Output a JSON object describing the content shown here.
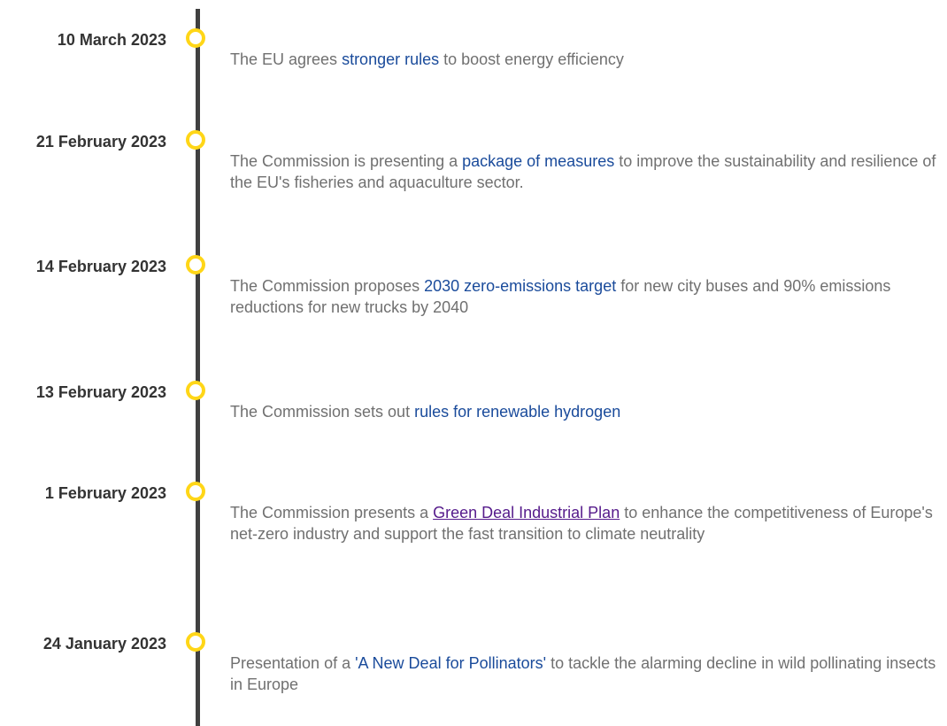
{
  "timeline": [
    {
      "date": "10 March 2023",
      "before": "The EU agrees ",
      "link": "stronger rules",
      "after": " to boost energy efficiency"
    },
    {
      "date": "21 February 2023",
      "before": "The Commission is presenting a ",
      "link": "package of measures",
      "after": " to improve the sustainability and resilience of the EU's fisheries and aquaculture sector."
    },
    {
      "date": "14 February 2023",
      "before": "The Commission proposes ",
      "link": "2030 zero-emissions target",
      "after": " for new city buses and 90% emissions reductions for new trucks by 2040"
    },
    {
      "date": "13 February 2023",
      "before": "The Commission sets out ",
      "link": "rules for renewable hydrogen",
      "after": ""
    },
    {
      "date": "1 February 2023",
      "before": "The Commission presents a ",
      "link": "Green Deal Industrial Plan",
      "after": " to enhance the competitiveness of Europe's net-zero industry and support the fast transition to climate neutrality"
    },
    {
      "date": "24 January 2023",
      "before": "Presentation of a ",
      "link": "'A New Deal for Pollinators'",
      "after": " to tackle the alarming decline in wild pollinating insects in Europe"
    }
  ]
}
